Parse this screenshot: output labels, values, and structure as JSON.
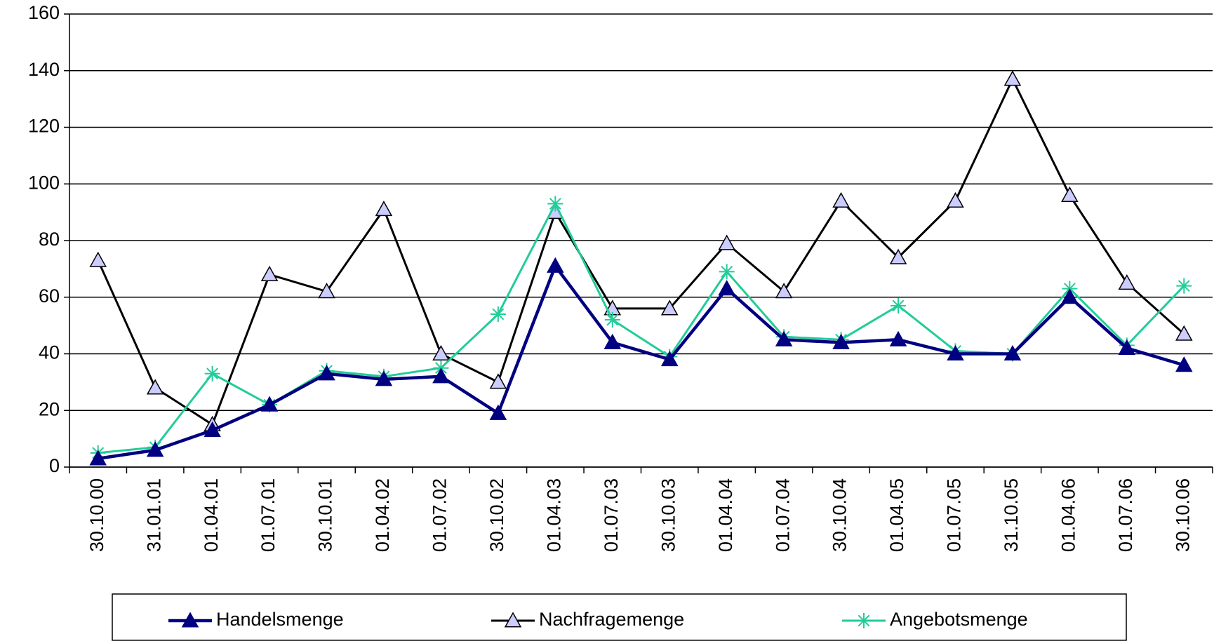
{
  "chart_data": {
    "type": "line",
    "categories": [
      "30.10.00",
      "31.01.01",
      "01.04.01",
      "01.07.01",
      "30.10.01",
      "01.04.02",
      "01.07.02",
      "30.10.02",
      "01.04.03",
      "01.07.03",
      "30.10.03",
      "01.04.04",
      "01.07.04",
      "30.10.04",
      "01.04.05",
      "01.07.05",
      "31.10.05",
      "01.04.06",
      "01.07.06",
      "30.10.06"
    ],
    "series": [
      {
        "name": "Handelsmenge",
        "color": "#000080",
        "marker": "triangle-filled",
        "values": [
          3,
          6,
          13,
          22,
          33,
          31,
          32,
          19,
          71,
          44,
          38,
          63,
          45,
          44,
          45,
          40,
          40,
          60,
          42,
          36
        ]
      },
      {
        "name": "Nachfragemenge",
        "color": "#000000",
        "marker": "triangle-open",
        "values": [
          73,
          28,
          15,
          68,
          62,
          91,
          40,
          30,
          90,
          56,
          56,
          79,
          62,
          94,
          74,
          94,
          137,
          96,
          65,
          47
        ]
      },
      {
        "name": "Angebotsmenge",
        "color": "#22cc99",
        "marker": "asterisk",
        "values": [
          5,
          7,
          33,
          22,
          34,
          32,
          35,
          54,
          93,
          52,
          39,
          69,
          46,
          45,
          57,
          41,
          40,
          63,
          43,
          64
        ]
      }
    ],
    "ylim": [
      0,
      160
    ],
    "yticks": [
      0,
      20,
      40,
      60,
      80,
      100,
      120,
      140,
      160
    ],
    "grid": true
  }
}
